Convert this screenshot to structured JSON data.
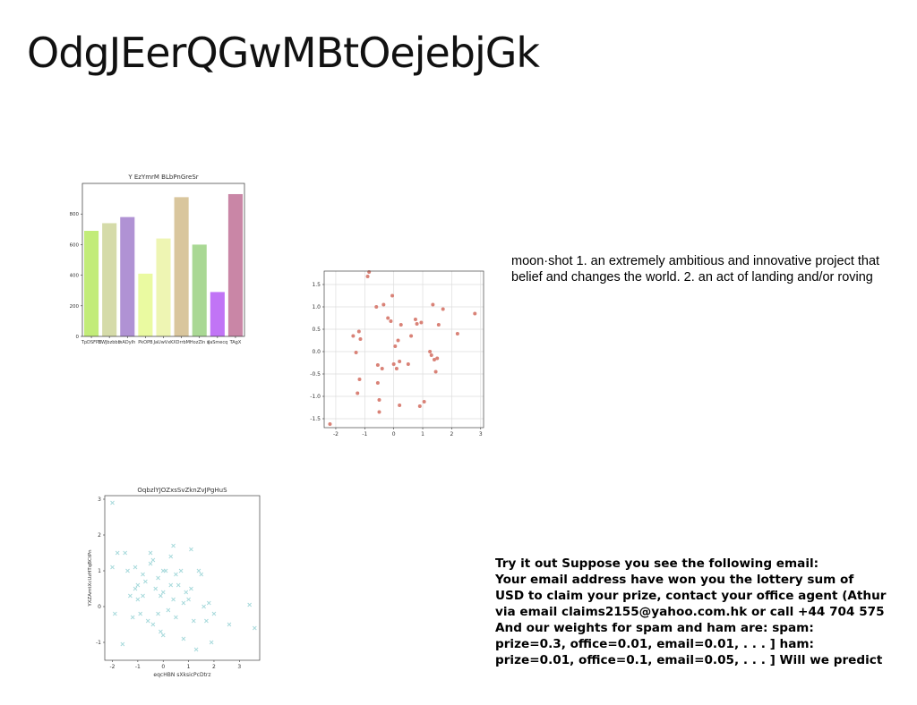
{
  "slide": {
    "title": "OdgJEerQGwMBtOejebjGk"
  },
  "definition": {
    "lines": [
      "moon·shot 1. an extremely ambitious and innovative project that",
      "belief and changes the world. 2. an act of landing and/or roving"
    ]
  },
  "email_example": {
    "lines": [
      "Try it out Suppose you see the following email:",
      "Your email address have won you the lottery sum of",
      "USD to claim your prize, contact your office agent (Athur",
      "via email claims2155@yahoo.com.hk or call +44 704 575",
      "And our weights for spam and ham are: spam:",
      "prize=0.3, office=0.01, email=0.01, . . . ] ham:",
      "prize=0.01, office=0.1, email=0.05, . . . ] Will we predict"
    ]
  },
  "chart_data": [
    {
      "type": "bar",
      "title": "Y EzYmrM BLbPnGreSr",
      "categories": [
        "TpDSFPh",
        "ZWJbzbbb",
        "hADyIh",
        "PkOPB",
        "JaUwVxK",
        "XDrrbM",
        "HozZln s",
        "iJaSmecq",
        "TAgX"
      ],
      "values": [
        690,
        740,
        780,
        410,
        640,
        910,
        600,
        290,
        930
      ],
      "colors": [
        "#c2ec79",
        "#d5dba9",
        "#b092d4",
        "#eafaa1",
        "#eef5b3",
        "#d9c69d",
        "#a9d894",
        "#c174f6",
        "#c986a6"
      ],
      "ylim": [
        0,
        1000
      ],
      "yticks": [
        0,
        200,
        400,
        600,
        800
      ],
      "xlabel": "",
      "ylabel": ""
    },
    {
      "type": "scatter",
      "title": "",
      "marker": "circle",
      "color": "#d98277",
      "grid": true,
      "xlim": [
        -2.4,
        3.1
      ],
      "ylim": [
        -1.7,
        1.8
      ],
      "xticks": [
        -2,
        -1,
        0,
        1,
        2,
        3
      ],
      "yticks": [
        -1.5,
        -1.0,
        -0.5,
        0.0,
        0.5,
        1.0,
        1.5
      ],
      "points": [
        [
          -2.2,
          -1.62
        ],
        [
          -1.4,
          0.35
        ],
        [
          -1.3,
          -0.02
        ],
        [
          -1.25,
          -0.93
        ],
        [
          -1.2,
          0.45
        ],
        [
          -1.15,
          0.28
        ],
        [
          -1.18,
          -0.62
        ],
        [
          -0.9,
          1.68
        ],
        [
          -0.85,
          1.78
        ],
        [
          -0.6,
          1.0
        ],
        [
          -0.55,
          -0.3
        ],
        [
          -0.55,
          -0.7
        ],
        [
          -0.5,
          -1.08
        ],
        [
          -0.5,
          -1.35
        ],
        [
          -0.4,
          -0.38
        ],
        [
          -0.35,
          1.05
        ],
        [
          -0.2,
          0.75
        ],
        [
          -0.1,
          0.68
        ],
        [
          -0.05,
          1.25
        ],
        [
          0.0,
          -0.28
        ],
        [
          0.05,
          0.12
        ],
        [
          0.1,
          -0.38
        ],
        [
          0.15,
          0.25
        ],
        [
          0.2,
          -0.22
        ],
        [
          0.2,
          -1.2
        ],
        [
          0.25,
          0.6
        ],
        [
          0.5,
          -0.28
        ],
        [
          0.6,
          0.35
        ],
        [
          0.75,
          0.72
        ],
        [
          0.8,
          0.62
        ],
        [
          0.9,
          -1.22
        ],
        [
          0.95,
          0.65
        ],
        [
          1.05,
          -1.12
        ],
        [
          1.25,
          0.0
        ],
        [
          1.3,
          -0.08
        ],
        [
          1.35,
          1.05
        ],
        [
          1.4,
          -0.18
        ],
        [
          1.45,
          -0.45
        ],
        [
          1.5,
          -0.15
        ],
        [
          1.55,
          0.6
        ],
        [
          1.7,
          0.95
        ],
        [
          2.2,
          0.4
        ],
        [
          2.8,
          0.85
        ]
      ]
    },
    {
      "type": "scatter",
      "title": "OqbzlYJOZxsSvZknZvJPgHuS",
      "xlabel": "eqcHBN sXksicPcDtrz",
      "ylabel": "YXZAmtXcUzHTqBCtPn",
      "marker": "x",
      "color": "#a8dadc",
      "grid": false,
      "xlim": [
        -2.3,
        3.8
      ],
      "ylim": [
        -1.5,
        3.1
      ],
      "xticks": [
        -2,
        -1,
        0,
        1,
        2,
        3
      ],
      "yticks": [
        -1,
        0,
        1,
        2,
        3
      ],
      "points": [
        [
          -2.0,
          2.9
        ],
        [
          -2.0,
          1.1
        ],
        [
          -1.9,
          -0.2
        ],
        [
          -1.8,
          1.5
        ],
        [
          -1.6,
          -1.05
        ],
        [
          -1.5,
          1.5
        ],
        [
          -1.4,
          1.0
        ],
        [
          -1.3,
          0.3
        ],
        [
          -1.2,
          -0.3
        ],
        [
          -1.1,
          1.1
        ],
        [
          -1.1,
          0.5
        ],
        [
          -1.0,
          0.6
        ],
        [
          -1.0,
          0.2
        ],
        [
          -0.9,
          -0.2
        ],
        [
          -0.8,
          0.9
        ],
        [
          -0.8,
          0.3
        ],
        [
          -0.7,
          0.7
        ],
        [
          -0.6,
          -0.4
        ],
        [
          -0.5,
          1.5
        ],
        [
          -0.5,
          1.2
        ],
        [
          -0.4,
          1.3
        ],
        [
          -0.4,
          -0.5
        ],
        [
          -0.3,
          0.5
        ],
        [
          -0.2,
          0.8
        ],
        [
          -0.2,
          -0.2
        ],
        [
          -0.1,
          0.3
        ],
        [
          -0.1,
          -0.7
        ],
        [
          0.0,
          1.0
        ],
        [
          0.0,
          0.4
        ],
        [
          0.0,
          -0.8
        ],
        [
          0.1,
          1.0
        ],
        [
          0.2,
          -0.1
        ],
        [
          0.3,
          1.4
        ],
        [
          0.3,
          0.6
        ],
        [
          0.4,
          0.2
        ],
        [
          0.4,
          1.7
        ],
        [
          0.5,
          0.9
        ],
        [
          0.5,
          -0.3
        ],
        [
          0.6,
          0.6
        ],
        [
          0.7,
          1.0
        ],
        [
          0.8,
          0.1
        ],
        [
          0.8,
          -0.9
        ],
        [
          0.9,
          0.4
        ],
        [
          1.0,
          0.2
        ],
        [
          1.1,
          1.6
        ],
        [
          1.1,
          0.5
        ],
        [
          1.2,
          -0.4
        ],
        [
          1.3,
          -1.2
        ],
        [
          1.4,
          1.0
        ],
        [
          1.5,
          0.9
        ],
        [
          1.6,
          0.0
        ],
        [
          1.7,
          -0.4
        ],
        [
          1.8,
          0.1
        ],
        [
          1.9,
          -1.0
        ],
        [
          2.0,
          -0.2
        ],
        [
          2.6,
          -0.5
        ],
        [
          3.4,
          0.05
        ],
        [
          3.6,
          -0.6
        ]
      ]
    }
  ]
}
